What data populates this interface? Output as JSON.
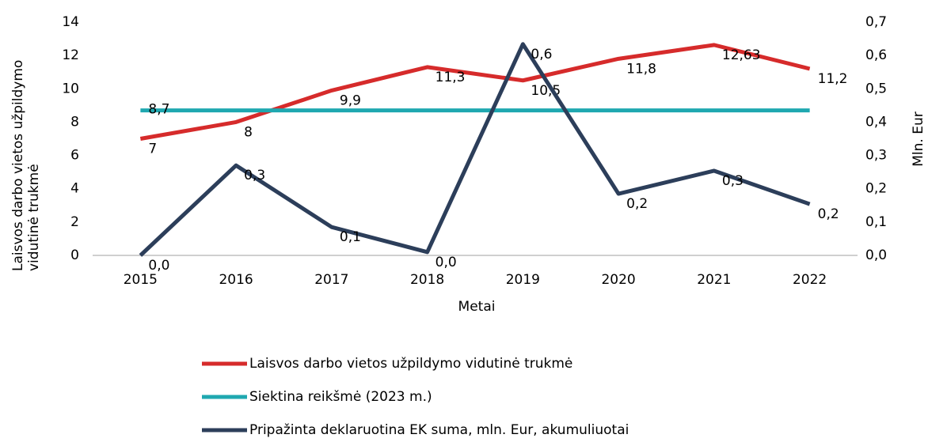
{
  "chart_data": {
    "type": "line",
    "categories": [
      "2015",
      "2016",
      "2017",
      "2018",
      "2019",
      "2020",
      "2021",
      "2022"
    ],
    "series": [
      {
        "name": "Laisvos darbo vietos užpildymo vidutinė trukmė",
        "color": "#d62b2b",
        "values": [
          7,
          8,
          9.9,
          11.3,
          10.5,
          11.8,
          12.63,
          11.2
        ],
        "value_labels": [
          "7",
          "8",
          "9,9",
          "11,3",
          "10,5",
          "11,8",
          "12,63",
          "11,2"
        ]
      },
      {
        "name": "Siektina reikšmė (2023 m.)",
        "color": "#1fa8b0",
        "values": [
          8.7,
          8.7,
          8.7,
          8.7,
          8.7,
          8.7,
          8.7,
          8.7
        ],
        "value_labels": [
          "8,7",
          null,
          null,
          null,
          null,
          null,
          null,
          null
        ]
      },
      {
        "name": "Pripažinta deklaruotina EK suma, mln. Eur, akumuliuotai",
        "color": "#2c3e5a",
        "axis": "y2",
        "values": [
          0.0,
          0.27,
          0.085,
          0.01,
          0.634,
          0.185,
          0.254,
          0.154
        ],
        "value_labels": [
          "0,0",
          "0,3",
          "0,1",
          "0,0",
          "0,6",
          "0,2",
          "0,3",
          "0,2"
        ]
      }
    ],
    "xlabel": "Metai",
    "ylabel": "Laisvos darbo vietos užpildymo vidutinė trukmė",
    "y2label": "Mln. Eur",
    "ylim": [
      0,
      14
    ],
    "yticks": [
      0,
      2,
      4,
      6,
      8,
      10,
      12,
      14
    ],
    "y2lim": [
      0,
      0.7
    ],
    "y2ticks": [
      {
        "value": 0,
        "label": "0,0"
      },
      {
        "value": 0.1,
        "label": "0,1"
      },
      {
        "value": 0.2,
        "label": "0,2"
      },
      {
        "value": 0.3,
        "label": "0,3"
      },
      {
        "value": 0.4,
        "label": "0,4"
      },
      {
        "value": 0.5,
        "label": "0,5"
      },
      {
        "value": 0.6,
        "label": "0,6"
      },
      {
        "value": 0.7,
        "label": "0,7"
      }
    ],
    "legend": "bottom",
    "grid": false
  }
}
